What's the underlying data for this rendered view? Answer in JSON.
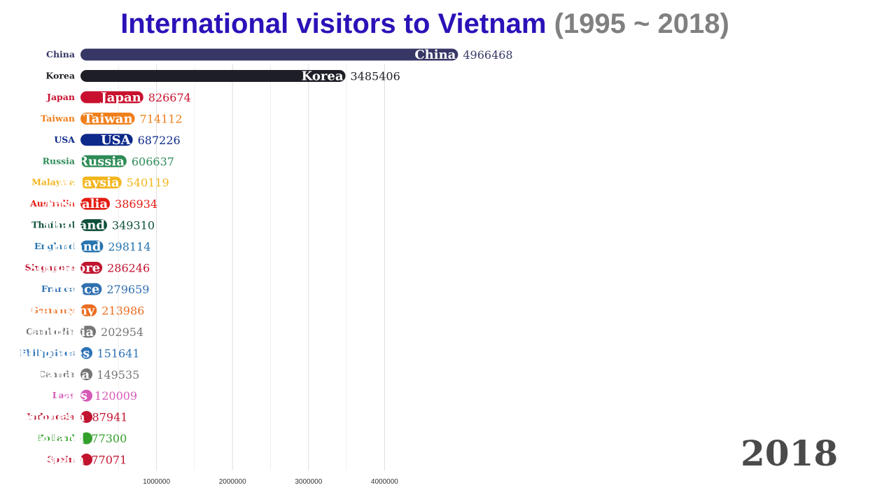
{
  "title": {
    "main": "International visitors to Vietnam",
    "range": "(1995 ~ 2018)"
  },
  "year": "2018",
  "chart_data": {
    "type": "bar",
    "orientation": "horizontal",
    "title": "International visitors to Vietnam (1995 ~ 2018)",
    "xlim": [
      0,
      5200000
    ],
    "x_ticks": [
      1000000,
      2000000,
      3000000,
      4000000
    ],
    "x_tick_labels": [
      "1000000",
      "2000000",
      "3000000",
      "4000000"
    ],
    "grid": "vertical",
    "categories": [
      "China",
      "Korea",
      "Japan",
      "Taiwan",
      "USA",
      "Russia",
      "Malaysia",
      "Australia",
      "Thailand",
      "England",
      "Singapore",
      "France",
      "Germany",
      "Cambodia",
      "Philippines",
      "Canada",
      "Laos",
      "Indonesia",
      "Holland",
      "Spain"
    ],
    "values": [
      4966468,
      3485406,
      826674,
      714112,
      687226,
      606637,
      540119,
      386934,
      349310,
      298114,
      286246,
      279659,
      213986,
      202954,
      151641,
      149535,
      120009,
      87941,
      77300,
      77071
    ],
    "colors": [
      "#363765",
      "#1e1f26",
      "#c8102e",
      "#ef7f1a",
      "#0e2a8a",
      "#2e8b57",
      "#f2b51c",
      "#e31b12",
      "#0f5038",
      "#2774ae",
      "#c0142f",
      "#2f6fb0",
      "#ec6c20",
      "#767676",
      "#2d72b6",
      "#767676",
      "#d65ab8",
      "#c0142f",
      "#33a02c",
      "#c0142f"
    ]
  }
}
